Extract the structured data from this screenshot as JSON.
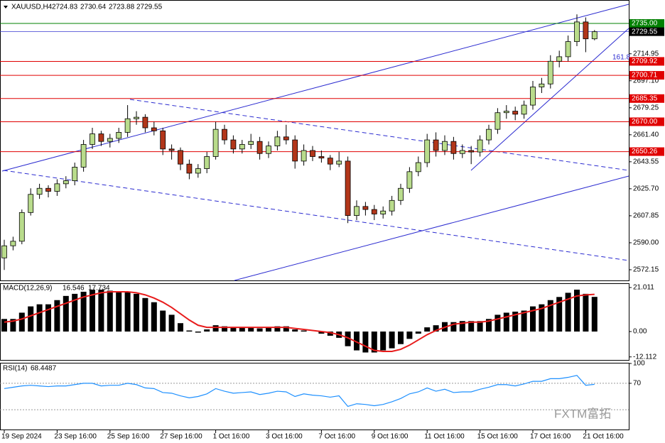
{
  "chart_data": [
    {
      "type": "candlestick",
      "title": "XAUUSD,H4",
      "categories": [
        "19 Sep 2024",
        null,
        null,
        null,
        null,
        null,
        "23 Sep 16:00",
        null,
        null,
        null,
        null,
        null,
        "25 Sep 16:00",
        null,
        null,
        null,
        null,
        null,
        "27 Sep 16:00",
        null,
        null,
        null,
        null,
        null,
        "1 Oct 16:00",
        null,
        null,
        null,
        null,
        null,
        "3 Oct 16:00",
        null,
        null,
        null,
        null,
        null,
        "7 Oct 16:00",
        null,
        null,
        null,
        null,
        null,
        "9 Oct 16:00",
        null,
        null,
        null,
        null,
        null,
        "11 Oct 16:00",
        null,
        null,
        null,
        null,
        null,
        "15 Oct 16:00",
        null,
        null,
        null,
        null,
        null,
        "17 Oct 16:00",
        null,
        null,
        null,
        null,
        null,
        "21 Oct 16:00",
        null
      ],
      "open": [
        2580,
        2588,
        2591,
        2610,
        2622,
        2626,
        2624,
        2629,
        2631,
        2640,
        2655,
        2662,
        2657,
        2659,
        2663,
        2672,
        2673,
        2666,
        2664,
        2652,
        2651,
        2642,
        2636,
        2639,
        2647,
        2665,
        2658,
        2652,
        2655,
        2657,
        2649,
        2654,
        2660,
        2658,
        2644,
        2651,
        2647,
        2646,
        2642,
        2644,
        2608,
        2614,
        2612,
        2609,
        2611,
        2618,
        2626,
        2637,
        2643,
        2658,
        2651,
        2657,
        2649,
        2651,
        2650,
        2658,
        2665,
        2676,
        2677,
        2675,
        2681,
        2693,
        2695,
        2710,
        2713,
        2723,
        2736,
        2724.83
      ],
      "high": [
        2592,
        2594,
        2612,
        2626,
        2629,
        2628,
        2632,
        2634,
        2643,
        2658,
        2666,
        2664,
        2662,
        2666,
        2681,
        2677,
        2675,
        2670,
        2666,
        2655,
        2653,
        2645,
        2642,
        2650,
        2670,
        2668,
        2661,
        2658,
        2662,
        2660,
        2657,
        2664,
        2668,
        2661,
        2655,
        2654,
        2651,
        2648,
        2650,
        2647,
        2618,
        2617,
        2615,
        2614,
        2621,
        2629,
        2640,
        2647,
        2662,
        2663,
        2661,
        2660,
        2655,
        2654,
        2661,
        2668,
        2679,
        2681,
        2680,
        2684,
        2697,
        2699,
        2714,
        2717,
        2727,
        2741,
        2739,
        2730.64
      ],
      "low": [
        2572,
        2585,
        2589,
        2608,
        2619,
        2620,
        2621,
        2626,
        2628,
        2637,
        2652,
        2654,
        2653,
        2656,
        2660,
        2668,
        2663,
        2661,
        2648,
        2645,
        2638,
        2632,
        2633,
        2636,
        2645,
        2655,
        2649,
        2649,
        2652,
        2645,
        2646,
        2651,
        2655,
        2639,
        2641,
        2644,
        2643,
        2638,
        2640,
        2603,
        2605,
        2608,
        2605,
        2606,
        2608,
        2615,
        2623,
        2634,
        2640,
        2647,
        2648,
        2645,
        2646,
        2642,
        2647,
        2655,
        2662,
        2672,
        2671,
        2672,
        2678,
        2689,
        2692,
        2706,
        2710,
        2720,
        2716,
        2723.88
      ],
      "close": [
        2588,
        2591,
        2610,
        2622,
        2626,
        2624,
        2629,
        2631,
        2640,
        2655,
        2662,
        2657,
        2659,
        2663,
        2672,
        2673,
        2666,
        2664,
        2652,
        2651,
        2642,
        2636,
        2639,
        2647,
        2665,
        2658,
        2652,
        2655,
        2657,
        2649,
        2654,
        2660,
        2658,
        2644,
        2651,
        2647,
        2646,
        2642,
        2644,
        2608,
        2614,
        2612,
        2609,
        2611,
        2618,
        2626,
        2637,
        2643,
        2658,
        2651,
        2657,
        2649,
        2651,
        2650,
        2658,
        2665,
        2676,
        2677,
        2675,
        2681,
        2693,
        2695,
        2710,
        2713,
        2723,
        2736,
        2724.83,
        2729.55
      ],
      "up_color": "#b9dc8c",
      "down_color": "#b2361a",
      "current_price_color": "#3a3ad0",
      "ylim": [
        2565.1,
        2750.5
      ],
      "yticks": [
        2714.95,
        {
          "value": 2697.1,
          "label": "2697.10"
        },
        2679.25,
        {
          "value": 2661.4,
          "label": "2661.40"
        },
        2643.55,
        {
          "value": 2625.7,
          "label": "2625.70"
        },
        2607.85,
        {
          "value": 2590,
          "label": "2590.00"
        },
        2572.15
      ],
      "levels": [
        {
          "value": 2735,
          "label": "2735.00",
          "color": "#008000"
        },
        {
          "value": 2709.92,
          "label": "2709.92",
          "color": "#e00000"
        },
        {
          "value": 2700.71,
          "label": "2700.71",
          "color": "#e00000"
        },
        {
          "value": 2685.35,
          "label": "2685.35",
          "color": "#e00000"
        },
        {
          "value": 2670,
          "label": "2670.00",
          "color": "#e00000"
        },
        {
          "value": 2650.26,
          "label": "2650.26",
          "color": "#e00000"
        }
      ],
      "annotations": [
        "161.8"
      ]
    },
    {
      "type": "macd",
      "series": [
        {
          "name": "MACD(12,26,9)",
          "color": "#000000",
          "values": [
            6,
            6,
            9,
            12,
            13,
            13,
            15,
            17,
            18,
            19,
            20,
            20,
            19.5,
            19,
            19,
            18,
            16,
            14,
            10,
            8,
            4,
            0.5,
            -0.5,
            1,
            3,
            2.5,
            2,
            2,
            2,
            1.5,
            2,
            2.5,
            2.5,
            1,
            0.5,
            0,
            -1,
            -2,
            -3,
            -7,
            -9,
            -10,
            -10,
            -9,
            -8,
            -6,
            -3.5,
            -1,
            2,
            3,
            4.5,
            4.5,
            5,
            5,
            5,
            6,
            8,
            9,
            9.5,
            10,
            12,
            13,
            15,
            16.5,
            18.5,
            20,
            18,
            16.546
          ]
        },
        {
          "color": "#e81c1c",
          "values": [
            4.5,
            5,
            6,
            7.5,
            9,
            10.5,
            12,
            13.5,
            15,
            16.5,
            17.5,
            18.5,
            19,
            19,
            19,
            18.5,
            17.5,
            16,
            14,
            11.5,
            8.5,
            5.5,
            3,
            2,
            2,
            2,
            2,
            2,
            2,
            2,
            2,
            2,
            2,
            1.5,
            1,
            0.5,
            0,
            -0.5,
            -1.5,
            -3,
            -5,
            -7,
            -9,
            -9.5,
            -9.5,
            -8.5,
            -6.5,
            -4,
            -1.5,
            0.5,
            2,
            3.5,
            4,
            4.5,
            4.5,
            5,
            6,
            7,
            8,
            9,
            10,
            11,
            12.5,
            14,
            15.5,
            17,
            17.5,
            17.734
          ]
        }
      ],
      "ylim": [
        -13.56,
        22.71
      ],
      "yticks": [
        21.011,
        {
          "value": 0,
          "label": "0.00"
        },
        -12.112
      ]
    },
    {
      "type": "line",
      "series": [
        {
          "name": "RSI(14)",
          "color": "#1e90ff",
          "values": [
            62,
            64,
            66,
            67,
            66,
            65,
            66,
            66,
            68,
            70,
            70,
            66,
            67,
            67,
            70,
            68,
            63,
            62,
            56,
            55,
            51,
            48,
            50,
            54,
            62,
            58,
            55,
            56,
            57,
            53,
            55,
            58,
            57,
            50,
            54,
            52,
            51,
            49,
            51,
            35,
            39,
            38,
            36,
            38,
            42,
            47,
            54,
            57,
            63,
            58,
            61,
            56,
            57,
            57,
            61,
            64,
            68,
            68,
            66,
            69,
            73,
            73,
            77,
            77,
            79,
            82,
            67,
            68.4487
          ]
        }
      ],
      "ylim": [
        0,
        100
      ],
      "yticks": [
        100,
        70
      ],
      "levels": [
        70,
        30
      ]
    }
  ],
  "watermark": "FXTM富拓"
}
